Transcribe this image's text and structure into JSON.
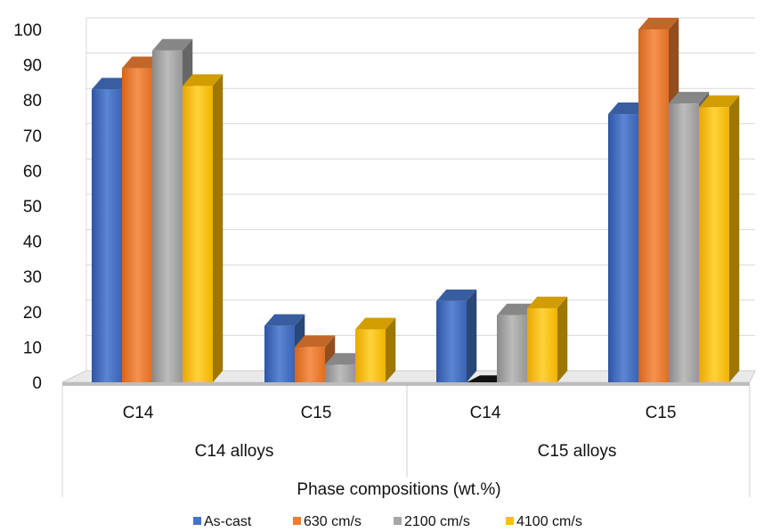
{
  "chart_data": {
    "type": "bar",
    "title": "",
    "xlabel": "Phase compositions (wt.%)",
    "ylabel": "",
    "ylim": [
      0,
      100
    ],
    "yticks": [
      0,
      10,
      20,
      30,
      40,
      50,
      60,
      70,
      80,
      90,
      100
    ],
    "grid": true,
    "three_d": true,
    "legend_position": "bottom",
    "groups": [
      {
        "label": "C14 alloys",
        "categories": [
          "C14",
          "C15"
        ]
      },
      {
        "label": "C15 alloys",
        "categories": [
          "C14",
          "C15"
        ]
      }
    ],
    "categories": [
      "C14",
      "C15",
      "C14",
      "C15"
    ],
    "series": [
      {
        "name": "As-cast",
        "color": "#4472C4",
        "values": [
          83,
          16,
          23,
          76
        ]
      },
      {
        "name": "630 cm/s",
        "color": "#ED7D31",
        "values": [
          89,
          10,
          0,
          100
        ]
      },
      {
        "name": "2100 cm/s",
        "color": "#A5A5A5",
        "values": [
          94,
          5,
          19,
          79
        ]
      },
      {
        "name": "4100 cm/s",
        "color": "#FFC000",
        "values": [
          84,
          15,
          21,
          78
        ]
      }
    ]
  }
}
